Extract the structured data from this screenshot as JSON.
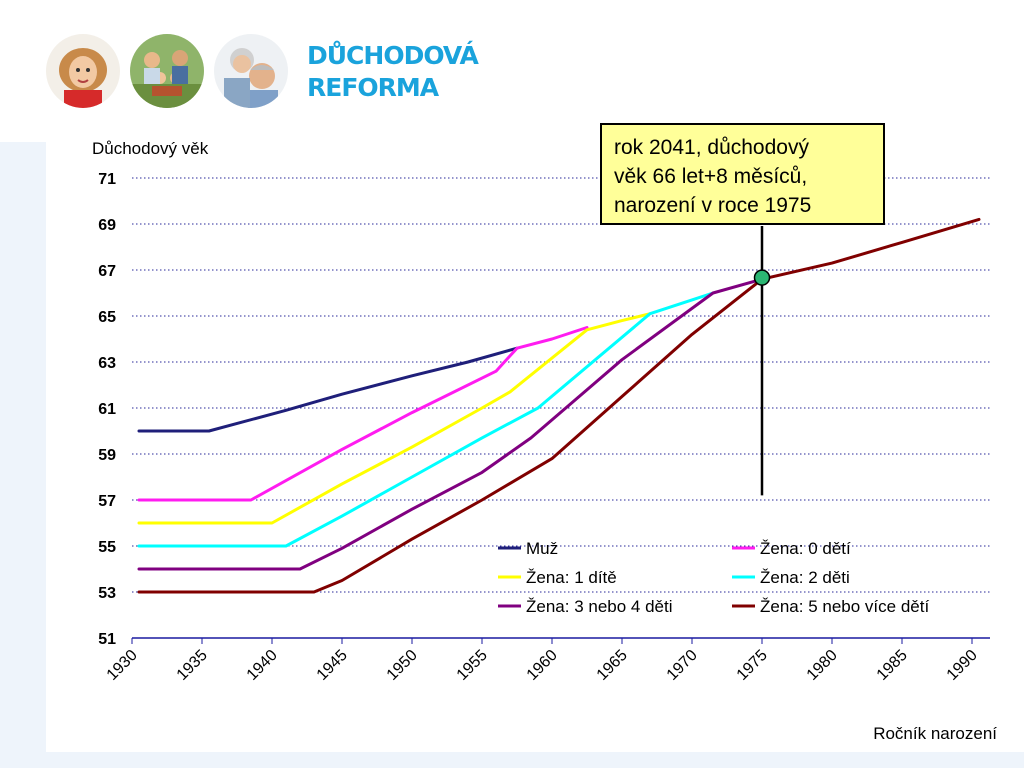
{
  "header": {
    "brand_line1": "DŮCHODOVÁ",
    "brand_line2": "REFORMA",
    "photos": [
      "child-photo",
      "family-photo",
      "grandparents-photo"
    ]
  },
  "annotation": {
    "lines": [
      "rok 2041, důchodový",
      "věk 66 let+8 měsíců,",
      "narození v roce 1975"
    ],
    "marker_x": 1975,
    "marker_y": 66.67
  },
  "chart_data": {
    "type": "line",
    "title": "",
    "ylabel": "Důchodový věk",
    "xlabel": "Ročník narození",
    "xlim": [
      1930,
      1991
    ],
    "ylim": [
      51,
      71
    ],
    "xticks": [
      1930,
      1935,
      1940,
      1945,
      1950,
      1955,
      1960,
      1965,
      1970,
      1975,
      1980,
      1985,
      1990
    ],
    "yticks": [
      51,
      53,
      55,
      57,
      59,
      61,
      63,
      65,
      67,
      69,
      71
    ],
    "grid": "horizontal dotted",
    "series": [
      {
        "name": "Muž",
        "color": "#1f1f7a",
        "legend_pos": "left",
        "legend_row": 0,
        "points": [
          [
            1930.5,
            60
          ],
          [
            1935.5,
            60
          ],
          [
            1941,
            60.9
          ],
          [
            1945,
            61.6
          ],
          [
            1950,
            62.4
          ],
          [
            1954,
            63.0
          ],
          [
            1957.5,
            63.6
          ]
        ]
      },
      {
        "name": "Žena: 0 dětí",
        "color": "#ff1cf0",
        "legend_pos": "right",
        "legend_row": 0,
        "points": [
          [
            1930.5,
            57
          ],
          [
            1938.5,
            57
          ],
          [
            1945,
            59.2
          ],
          [
            1950,
            60.8
          ],
          [
            1956,
            62.6
          ],
          [
            1957.5,
            63.6
          ],
          [
            1960,
            64.0
          ],
          [
            1962.5,
            64.5
          ]
        ]
      },
      {
        "name": "Žena: 1 dítě",
        "color": "#ffff00",
        "legend_pos": "left",
        "legend_row": 1,
        "points": [
          [
            1930.5,
            56
          ],
          [
            1940,
            56
          ],
          [
            1945,
            57.7
          ],
          [
            1950,
            59.3
          ],
          [
            1955,
            61.0
          ],
          [
            1957,
            61.7
          ],
          [
            1962.5,
            64.4
          ],
          [
            1965,
            64.8
          ],
          [
            1967,
            65.1
          ]
        ]
      },
      {
        "name": "Žena: 2 děti",
        "color": "#00ffff",
        "legend_pos": "right",
        "legend_row": 1,
        "points": [
          [
            1930.5,
            55
          ],
          [
            1941,
            55
          ],
          [
            1945,
            56.3
          ],
          [
            1950,
            58.0
          ],
          [
            1955,
            59.7
          ],
          [
            1959,
            61.0
          ],
          [
            1967,
            65.1
          ],
          [
            1970,
            65.7
          ],
          [
            1971.5,
            66.0
          ]
        ]
      },
      {
        "name": "Žena: 3 nebo 4 děti",
        "color": "#800080",
        "legend_pos": "left",
        "legend_row": 2,
        "points": [
          [
            1930.5,
            54
          ],
          [
            1942,
            54
          ],
          [
            1945,
            54.9
          ],
          [
            1950,
            56.6
          ],
          [
            1955,
            58.2
          ],
          [
            1958.5,
            59.7
          ],
          [
            1965,
            63.1
          ],
          [
            1971.5,
            66.0
          ],
          [
            1975,
            66.6
          ]
        ]
      },
      {
        "name": "Žena: 5 nebo více dětí",
        "color": "#800000",
        "legend_pos": "right",
        "legend_row": 2,
        "points": [
          [
            1930.5,
            53
          ],
          [
            1943,
            53
          ],
          [
            1945,
            53.5
          ],
          [
            1950,
            55.3
          ],
          [
            1955,
            57.0
          ],
          [
            1960,
            58.8
          ],
          [
            1965,
            61.5
          ],
          [
            1970,
            64.2
          ],
          [
            1975,
            66.6
          ],
          [
            1980,
            67.3
          ],
          [
            1985,
            68.2
          ],
          [
            1990.5,
            69.2
          ]
        ]
      }
    ]
  }
}
